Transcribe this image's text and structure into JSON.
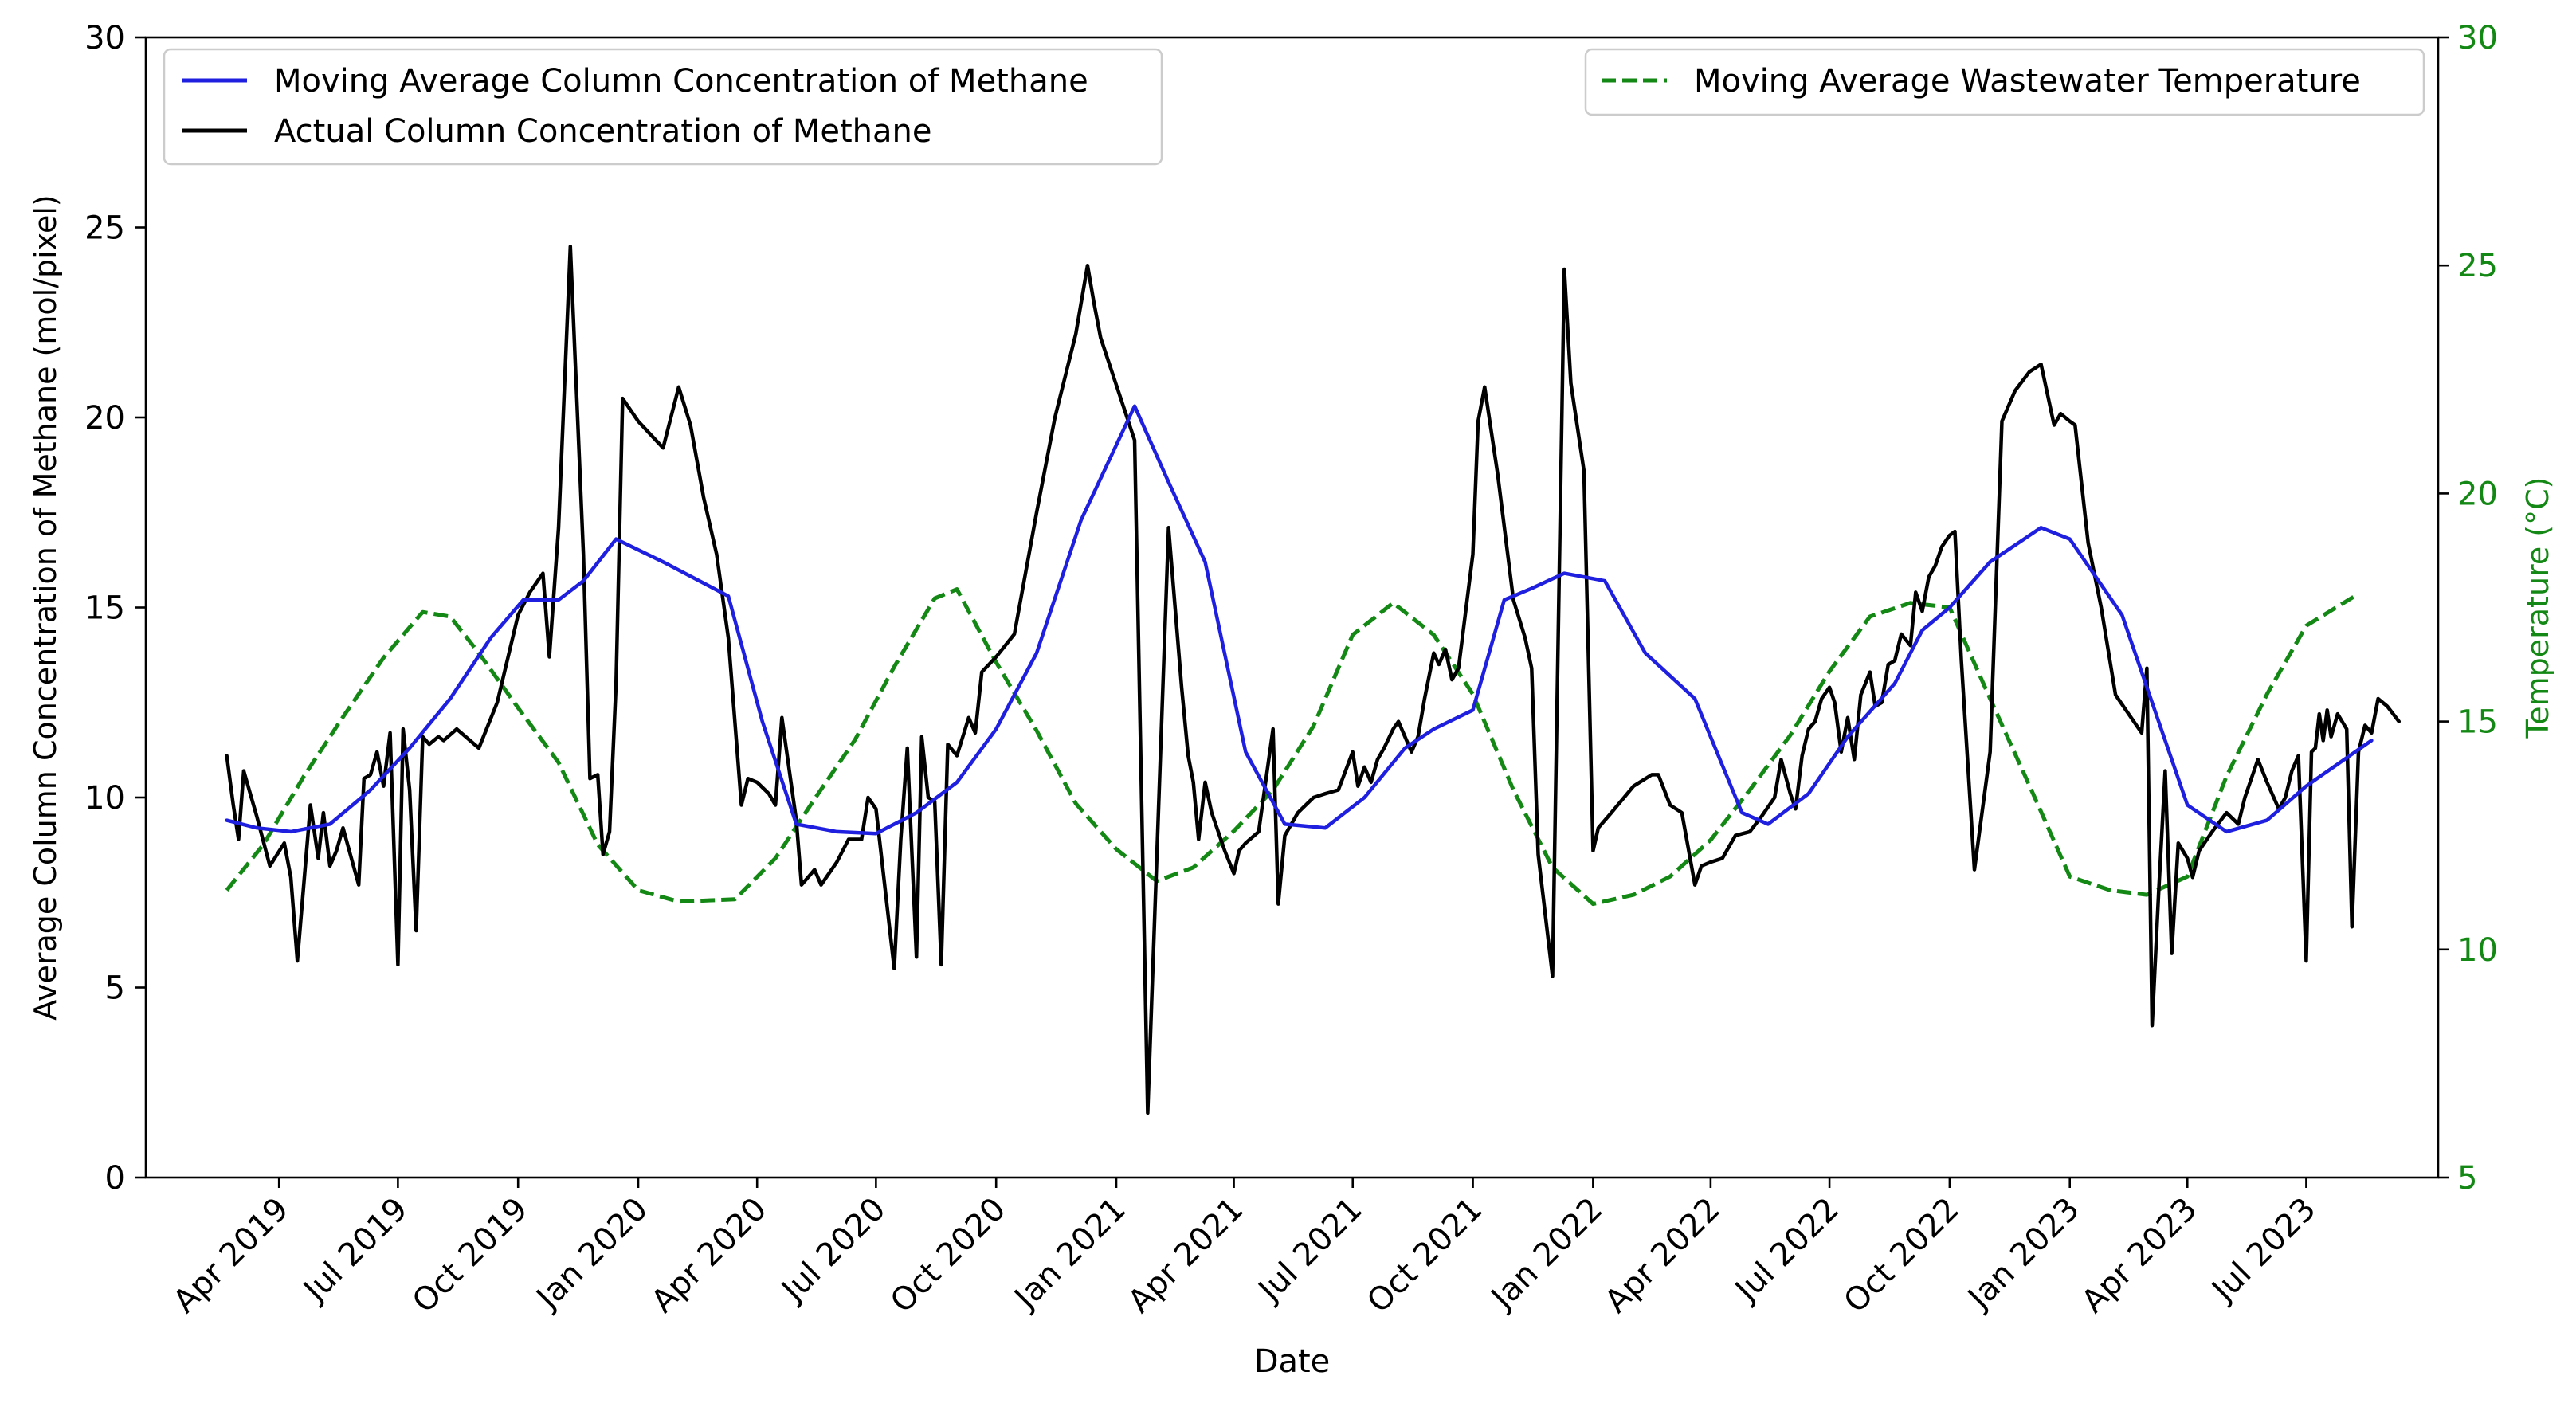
{
  "chart_data": {
    "type": "line",
    "xlabel": "Date",
    "ylabel": "Average Column Concentration of Methane (mol/pixel)",
    "y2label": "Temperature (°C)",
    "ylim": [
      0,
      30
    ],
    "y2lim": [
      5,
      30
    ],
    "yticks": [
      0,
      5,
      10,
      15,
      20,
      25,
      30
    ],
    "y2ticks": [
      5,
      10,
      15,
      20,
      25,
      30
    ],
    "xlim": [
      "2018-12-20",
      "2023-10-10"
    ],
    "xticks": [
      {
        "date": "2019-04-01",
        "label": "Apr 2019"
      },
      {
        "date": "2019-07-01",
        "label": "Jul 2019"
      },
      {
        "date": "2019-10-01",
        "label": "Oct 2019"
      },
      {
        "date": "2020-01-01",
        "label": "Jan 2020"
      },
      {
        "date": "2020-04-01",
        "label": "Apr 2020"
      },
      {
        "date": "2020-07-01",
        "label": "Jul 2020"
      },
      {
        "date": "2020-10-01",
        "label": "Oct 2020"
      },
      {
        "date": "2021-01-01",
        "label": "Jan 2021"
      },
      {
        "date": "2021-04-01",
        "label": "Apr 2021"
      },
      {
        "date": "2021-07-01",
        "label": "Jul 2021"
      },
      {
        "date": "2021-10-01",
        "label": "Oct 2021"
      },
      {
        "date": "2022-01-01",
        "label": "Jan 2022"
      },
      {
        "date": "2022-04-01",
        "label": "Apr 2022"
      },
      {
        "date": "2022-07-01",
        "label": "Jul 2022"
      },
      {
        "date": "2022-10-01",
        "label": "Oct 2022"
      },
      {
        "date": "2023-01-01",
        "label": "Jan 2023"
      },
      {
        "date": "2023-04-01",
        "label": "Apr 2023"
      },
      {
        "date": "2023-07-01",
        "label": "Jul 2023"
      }
    ],
    "legend_left": {
      "location": "upper-left",
      "entries": [
        "Moving Average Column Concentration of Methane",
        "Actual Column Concentration of Methane"
      ]
    },
    "legend_right": {
      "location": "upper-right",
      "entries": [
        "Moving Average Wastewater Temperature"
      ]
    },
    "series": [
      {
        "name": "Moving Average Column Concentration of Methane",
        "color": "#1f1fe0",
        "style": "solid",
        "axis": "left",
        "x": [
          "2019-02-20",
          "2019-03-15",
          "2019-04-10",
          "2019-05-10",
          "2019-06-10",
          "2019-07-10",
          "2019-08-10",
          "2019-09-10",
          "2019-10-05",
          "2019-11-01",
          "2019-11-20",
          "2019-12-15",
          "2020-01-20",
          "2020-03-10",
          "2020-04-05",
          "2020-05-01",
          "2020-06-01",
          "2020-07-01",
          "2020-08-01",
          "2020-09-01",
          "2020-10-01",
          "2020-11-01",
          "2020-12-05",
          "2021-01-15",
          "2021-02-10",
          "2021-03-10",
          "2021-04-10",
          "2021-05-10",
          "2021-06-10",
          "2021-07-10",
          "2021-08-10",
          "2021-09-01",
          "2021-10-01",
          "2021-10-25",
          "2021-11-15",
          "2021-12-10",
          "2022-01-10",
          "2022-02-10",
          "2022-03-20",
          "2022-04-25",
          "2022-05-15",
          "2022-06-15",
          "2022-07-15",
          "2022-08-20",
          "2022-09-10",
          "2022-10-01",
          "2022-11-01",
          "2022-12-10",
          "2023-01-01",
          "2023-02-10",
          "2023-03-10",
          "2023-04-01",
          "2023-05-01",
          "2023-06-01",
          "2023-07-01",
          "2023-08-20"
        ],
        "values": [
          9.4,
          9.2,
          9.1,
          9.3,
          10.2,
          11.3,
          12.6,
          14.2,
          15.2,
          15.2,
          15.7,
          16.8,
          16.2,
          15.3,
          12.0,
          9.3,
          9.1,
          9.05,
          9.6,
          10.4,
          11.8,
          13.8,
          17.3,
          20.3,
          18.3,
          16.2,
          11.2,
          9.3,
          9.2,
          10.0,
          11.3,
          11.8,
          12.3,
          15.2,
          15.5,
          15.9,
          15.7,
          13.8,
          12.6,
          9.6,
          9.3,
          10.1,
          11.6,
          13.0,
          14.4,
          15.0,
          16.2,
          17.1,
          16.8,
          14.8,
          12.0,
          9.8,
          9.1,
          9.4,
          10.3,
          11.5
        ]
      },
      {
        "name": "Actual Column Concentration of Methane",
        "color": "#000000",
        "style": "solid",
        "axis": "left",
        "x": [
          "2019-02-20",
          "2019-02-25",
          "2019-03-01",
          "2019-03-05",
          "2019-03-15",
          "2019-03-25",
          "2019-04-05",
          "2019-04-10",
          "2019-04-15",
          "2019-04-25",
          "2019-05-01",
          "2019-05-05",
          "2019-05-10",
          "2019-05-15",
          "2019-05-20",
          "2019-06-01",
          "2019-06-05",
          "2019-06-10",
          "2019-06-15",
          "2019-06-20",
          "2019-06-25",
          "2019-07-01",
          "2019-07-05",
          "2019-07-10",
          "2019-07-15",
          "2019-07-20",
          "2019-07-25",
          "2019-08-01",
          "2019-08-05",
          "2019-08-15",
          "2019-09-01",
          "2019-09-15",
          "2019-10-01",
          "2019-10-10",
          "2019-10-20",
          "2019-10-25",
          "2019-11-01",
          "2019-11-10",
          "2019-11-20",
          "2019-11-25",
          "2019-12-01",
          "2019-12-05",
          "2019-12-10",
          "2019-12-15",
          "2019-12-20",
          "2020-01-01",
          "2020-01-20",
          "2020-02-01",
          "2020-02-10",
          "2020-02-20",
          "2020-03-01",
          "2020-03-10",
          "2020-03-20",
          "2020-03-25",
          "2020-04-01",
          "2020-04-10",
          "2020-04-15",
          "2020-04-20",
          "2020-05-01",
          "2020-05-05",
          "2020-05-10",
          "2020-05-15",
          "2020-05-20",
          "2020-06-01",
          "2020-06-10",
          "2020-06-20",
          "2020-06-25",
          "2020-07-01",
          "2020-07-10",
          "2020-07-15",
          "2020-07-20",
          "2020-07-25",
          "2020-08-01",
          "2020-08-05",
          "2020-08-10",
          "2020-08-15",
          "2020-08-20",
          "2020-08-25",
          "2020-09-01",
          "2020-09-10",
          "2020-09-15",
          "2020-09-20",
          "2020-10-01",
          "2020-10-15",
          "2020-11-01",
          "2020-11-15",
          "2020-12-01",
          "2020-12-10",
          "2020-12-15",
          "2020-12-20",
          "2021-01-15",
          "2021-01-25",
          "2021-02-10",
          "2021-02-20",
          "2021-02-25",
          "2021-03-01",
          "2021-03-05",
          "2021-03-10",
          "2021-03-15",
          "2021-03-20",
          "2021-03-25",
          "2021-04-01",
          "2021-04-05",
          "2021-04-10",
          "2021-04-20",
          "2021-05-01",
          "2021-05-05",
          "2021-05-10",
          "2021-05-15",
          "2021-05-20",
          "2021-06-01",
          "2021-06-10",
          "2021-06-20",
          "2021-07-01",
          "2021-07-05",
          "2021-07-10",
          "2021-07-15",
          "2021-07-20",
          "2021-07-25",
          "2021-08-01",
          "2021-08-05",
          "2021-08-10",
          "2021-08-15",
          "2021-08-20",
          "2021-08-25",
          "2021-09-01",
          "2021-09-05",
          "2021-09-10",
          "2021-09-15",
          "2021-09-20",
          "2021-10-01",
          "2021-10-05",
          "2021-10-10",
          "2021-10-20",
          "2021-11-01",
          "2021-11-10",
          "2021-11-15",
          "2021-11-20",
          "2021-12-01",
          "2021-12-10",
          "2021-12-15",
          "2021-12-25",
          "2022-01-01",
          "2022-01-05",
          "2022-01-15",
          "2022-02-01",
          "2022-02-15",
          "2022-02-20",
          "2022-03-01",
          "2022-03-10",
          "2022-03-20",
          "2022-03-25",
          "2022-04-01",
          "2022-04-10",
          "2022-04-20",
          "2022-05-01",
          "2022-05-10",
          "2022-05-20",
          "2022-05-25",
          "2022-06-01",
          "2022-06-05",
          "2022-06-10",
          "2022-06-15",
          "2022-06-20",
          "2022-06-25",
          "2022-07-01",
          "2022-07-05",
          "2022-07-10",
          "2022-07-15",
          "2022-07-20",
          "2022-07-25",
          "2022-08-01",
          "2022-08-05",
          "2022-08-10",
          "2022-08-15",
          "2022-08-20",
          "2022-08-25",
          "2022-09-01",
          "2022-09-05",
          "2022-09-10",
          "2022-09-15",
          "2022-09-20",
          "2022-09-25",
          "2022-10-01",
          "2022-10-05",
          "2022-10-10",
          "2022-10-20",
          "2022-11-01",
          "2022-11-10",
          "2022-11-20",
          "2022-12-01",
          "2022-12-10",
          "2022-12-20",
          "2022-12-25",
          "2023-01-01",
          "2023-01-05",
          "2023-01-15",
          "2023-01-25",
          "2023-02-05",
          "2023-02-15",
          "2023-02-25",
          "2023-03-01",
          "2023-03-05",
          "2023-03-10",
          "2023-03-15",
          "2023-03-20",
          "2023-03-25",
          "2023-04-01",
          "2023-04-05",
          "2023-04-10",
          "2023-04-20",
          "2023-05-01",
          "2023-05-10",
          "2023-05-15",
          "2023-05-20",
          "2023-05-25",
          "2023-06-01",
          "2023-06-10",
          "2023-06-15",
          "2023-06-20",
          "2023-06-25",
          "2023-07-01",
          "2023-07-05",
          "2023-07-08",
          "2023-07-11",
          "2023-07-14",
          "2023-07-17",
          "2023-07-20",
          "2023-07-25",
          "2023-08-01",
          "2023-08-05",
          "2023-08-10",
          "2023-08-15",
          "2023-08-20",
          "2023-08-25",
          "2023-09-01",
          "2023-09-10"
        ],
        "values": [
          11.1,
          9.8,
          8.9,
          10.7,
          9.5,
          8.2,
          8.8,
          7.9,
          5.7,
          9.8,
          8.4,
          9.6,
          8.2,
          8.6,
          9.2,
          7.7,
          10.5,
          10.6,
          11.2,
          10.3,
          11.7,
          5.6,
          11.8,
          10.2,
          6.5,
          11.6,
          11.4,
          11.6,
          11.5,
          11.8,
          11.3,
          12.5,
          14.8,
          15.4,
          15.9,
          13.7,
          17.1,
          24.5,
          16.4,
          10.5,
          10.6,
          8.5,
          9.1,
          13.0,
          20.5,
          19.9,
          19.2,
          20.8,
          19.8,
          17.9,
          16.4,
          14.2,
          9.8,
          10.5,
          10.4,
          10.1,
          9.8,
          12.1,
          9.4,
          7.7,
          7.9,
          8.1,
          7.7,
          8.3,
          8.9,
          8.9,
          10.0,
          9.7,
          7.0,
          5.5,
          8.9,
          11.3,
          5.8,
          11.6,
          10.0,
          9.9,
          5.6,
          11.4,
          11.1,
          12.1,
          11.7,
          13.3,
          13.7,
          14.3,
          17.5,
          20.0,
          22.2,
          24.0,
          23.0,
          22.1,
          19.4,
          1.7,
          17.1,
          12.9,
          11.1,
          10.4,
          8.9,
          10.4,
          9.6,
          9.1,
          8.6,
          8.0,
          8.6,
          8.8,
          9.1,
          11.8,
          7.2,
          9.0,
          9.3,
          9.6,
          10.0,
          10.1,
          10.2,
          11.2,
          10.3,
          10.8,
          10.4,
          11.0,
          11.3,
          11.8,
          12.0,
          11.6,
          11.2,
          11.6,
          12.6,
          13.8,
          13.5,
          13.9,
          13.1,
          13.4,
          16.4,
          19.9,
          20.8,
          18.5,
          15.2,
          14.2,
          13.4,
          8.5,
          5.3,
          23.9,
          20.9,
          18.6,
          8.6,
          9.2,
          9.6,
          10.3,
          10.6,
          10.6,
          9.8,
          9.6,
          7.7,
          8.2,
          8.3,
          8.4,
          9.0,
          9.1,
          9.5,
          10.0,
          11.0,
          10.1,
          9.7,
          11.1,
          11.8,
          12.0,
          12.6,
          12.9,
          12.5,
          11.2,
          12.1,
          11.0,
          12.7,
          13.3,
          12.4,
          12.5,
          13.5,
          13.6,
          14.3,
          14.0,
          15.4,
          14.9,
          15.8,
          16.1,
          16.6,
          16.9,
          17.0,
          13.6,
          8.1,
          11.2,
          19.9,
          20.7,
          21.2,
          21.4,
          19.8,
          20.1,
          19.9,
          19.8,
          16.7,
          15.0,
          12.7,
          12.2,
          11.7,
          13.4,
          4.0,
          7.5,
          10.7,
          5.9,
          8.8,
          8.4,
          7.9,
          8.6,
          9.1,
          9.6,
          9.3,
          10.0,
          10.5,
          11.0,
          10.4,
          9.7,
          10.0,
          10.7,
          11.1,
          5.7,
          11.2,
          11.3,
          12.2,
          11.5,
          12.3,
          11.6,
          12.2,
          11.8,
          6.6,
          11.2,
          11.9,
          11.7,
          12.6,
          12.4,
          12.0
        ]
      },
      {
        "name": "Moving Average Wastewater Temperature",
        "color": "#148814",
        "style": "dashed",
        "axis": "right",
        "x": [
          "2019-02-20",
          "2019-03-20",
          "2019-04-20",
          "2019-05-20",
          "2019-06-20",
          "2019-07-20",
          "2019-08-10",
          "2019-09-01",
          "2019-10-01",
          "2019-11-01",
          "2019-12-01",
          "2020-01-01",
          "2020-02-01",
          "2020-03-15",
          "2020-04-15",
          "2020-05-15",
          "2020-06-15",
          "2020-07-15",
          "2020-08-15",
          "2020-09-01",
          "2020-10-01",
          "2020-11-01",
          "2020-12-01",
          "2021-01-01",
          "2021-02-01",
          "2021-03-01",
          "2021-04-01",
          "2021-05-01",
          "2021-06-01",
          "2021-07-01",
          "2021-08-01",
          "2021-09-01",
          "2021-10-01",
          "2021-11-01",
          "2021-12-01",
          "2022-01-01",
          "2022-02-01",
          "2022-03-01",
          "2022-04-01",
          "2022-05-01",
          "2022-06-01",
          "2022-07-01",
          "2022-08-01",
          "2022-09-01",
          "2022-10-01",
          "2022-11-01",
          "2022-12-01",
          "2023-01-01",
          "2023-02-01",
          "2023-03-01",
          "2023-04-01",
          "2023-05-01",
          "2023-06-01",
          "2023-07-01",
          "2023-08-10"
        ],
        "values": [
          11.3,
          12.3,
          13.8,
          15.1,
          16.4,
          17.4,
          17.3,
          16.5,
          15.3,
          14.1,
          12.3,
          11.3,
          11.05,
          11.1,
          12.0,
          13.3,
          14.6,
          16.2,
          17.7,
          17.9,
          16.3,
          14.8,
          13.2,
          12.2,
          11.5,
          11.8,
          12.6,
          13.5,
          14.9,
          16.9,
          17.6,
          16.9,
          15.6,
          13.5,
          11.8,
          11.0,
          11.2,
          11.6,
          12.4,
          13.5,
          14.7,
          16.1,
          17.3,
          17.6,
          17.5,
          15.5,
          13.6,
          11.6,
          11.3,
          11.2,
          11.6,
          13.8,
          15.6,
          17.1,
          17.8
        ]
      }
    ]
  }
}
